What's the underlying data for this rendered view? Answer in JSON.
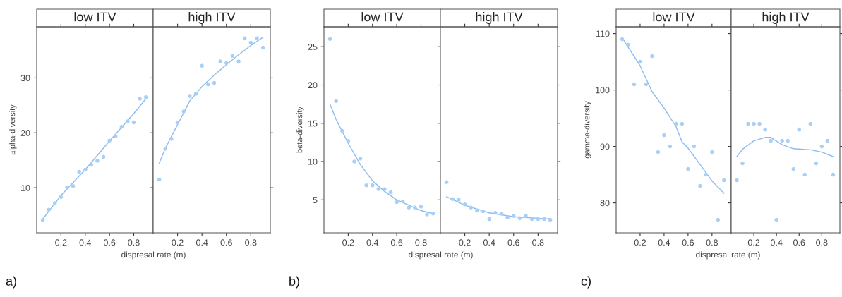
{
  "chart_data": [
    {
      "type": "scatter",
      "title": "low ITV",
      "xlabel": "dispresal rate (m)",
      "ylabel": "alpha-diversity",
      "annotations": [
        "a)"
      ],
      "grid": false,
      "xlim": [
        0.0,
        0.96
      ],
      "xticks": [
        0.2,
        0.4,
        0.6,
        0.8
      ],
      "ylim": [
        1.8,
        39.3
      ],
      "yticks": [
        10,
        20,
        30
      ],
      "x": [
        0.05,
        0.1,
        0.15,
        0.2,
        0.25,
        0.3,
        0.35,
        0.4,
        0.45,
        0.5,
        0.55,
        0.6,
        0.65,
        0.7,
        0.75,
        0.8,
        0.85,
        0.9
      ],
      "series": [
        {
          "marker": "circle",
          "color": "#a8cff5",
          "values": [
            4.1,
            6.0,
            7.2,
            8.3,
            10.0,
            10.3,
            12.9,
            13.3,
            14.2,
            14.9,
            15.6,
            18.6,
            19.4,
            21.1,
            22.1,
            21.9,
            26.2,
            26.5
          ]
        },
        {
          "type": "line",
          "color": "#8abcf0",
          "x": [
            0.05,
            0.2,
            0.4,
            0.6,
            0.8,
            0.9
          ],
          "values": [
            4.3,
            8.6,
            13.3,
            18.5,
            23.5,
            26.2
          ]
        }
      ]
    },
    {
      "type": "scatter",
      "title": "high ITV",
      "grid": false,
      "tick_labels": "x",
      "xlim": [
        0.0,
        0.96
      ],
      "xticks": [
        0.2,
        0.4,
        0.6,
        0.8
      ],
      "ylim": [
        1.8,
        39.3
      ],
      "yticks": [
        10,
        20,
        30
      ],
      "x": [
        0.05,
        0.1,
        0.15,
        0.2,
        0.25,
        0.3,
        0.35,
        0.4,
        0.45,
        0.5,
        0.55,
        0.6,
        0.65,
        0.7,
        0.75,
        0.8,
        0.85,
        0.9
      ],
      "series": [
        {
          "marker": "circle",
          "color": "#a8cff5",
          "values": [
            11.5,
            17.1,
            18.9,
            21.9,
            23.9,
            26.7,
            27.1,
            32.2,
            28.8,
            29.1,
            33.0,
            32.7,
            34.0,
            33.0,
            37.2,
            36.4,
            37.2,
            35.5
          ]
        },
        {
          "type": "line",
          "color": "#8abcf0",
          "x": [
            0.05,
            0.1,
            0.2,
            0.3,
            0.4,
            0.5,
            0.6,
            0.7,
            0.8,
            0.9
          ],
          "values": [
            14.5,
            17.2,
            21.5,
            25.8,
            28.4,
            30.5,
            32.4,
            34.2,
            35.9,
            37.4
          ]
        }
      ]
    },
    {
      "type": "scatter",
      "title": "low ITV",
      "xlabel": "dispresal rate (m)",
      "ylabel": "beta-diversity",
      "annotations": [
        "b)"
      ],
      "grid": false,
      "xlim": [
        0.0,
        0.96
      ],
      "xticks": [
        0.2,
        0.4,
        0.6,
        0.8
      ],
      "ylim": [
        0.7,
        27.6
      ],
      "yticks": [
        5,
        10,
        15,
        20,
        25
      ],
      "x": [
        0.05,
        0.1,
        0.15,
        0.2,
        0.25,
        0.3,
        0.35,
        0.4,
        0.45,
        0.5,
        0.55,
        0.6,
        0.65,
        0.7,
        0.75,
        0.8,
        0.85,
        0.9
      ],
      "series": [
        {
          "marker": "circle",
          "color": "#a8cff5",
          "values": [
            26.0,
            17.9,
            14.0,
            12.7,
            10.0,
            10.4,
            6.9,
            6.9,
            6.4,
            6.4,
            6.0,
            4.7,
            4.8,
            4.0,
            4.0,
            4.1,
            3.1,
            3.2
          ]
        },
        {
          "type": "line",
          "color": "#8abcf0",
          "x": [
            0.05,
            0.1,
            0.2,
            0.3,
            0.4,
            0.5,
            0.6,
            0.7,
            0.8,
            0.9
          ],
          "values": [
            17.5,
            15.5,
            12.4,
            9.6,
            7.5,
            6.1,
            5.0,
            4.3,
            3.6,
            3.2
          ]
        }
      ]
    },
    {
      "type": "scatter",
      "title": "high ITV",
      "grid": false,
      "tick_labels": "x",
      "xlim": [
        0.0,
        0.96
      ],
      "xticks": [
        0.2,
        0.4,
        0.6,
        0.8
      ],
      "ylim": [
        0.7,
        27.6
      ],
      "yticks": [
        5,
        10,
        15,
        20,
        25
      ],
      "x": [
        0.05,
        0.1,
        0.15,
        0.2,
        0.25,
        0.3,
        0.35,
        0.4,
        0.45,
        0.5,
        0.55,
        0.6,
        0.65,
        0.7,
        0.75,
        0.8,
        0.85,
        0.9
      ],
      "series": [
        {
          "marker": "circle",
          "color": "#a8cff5",
          "values": [
            7.3,
            5.1,
            5.0,
            4.4,
            4.0,
            3.6,
            3.5,
            2.5,
            3.3,
            3.2,
            2.7,
            2.9,
            2.6,
            2.9,
            2.5,
            2.5,
            2.5,
            2.4
          ]
        },
        {
          "type": "line",
          "color": "#8abcf0",
          "x": [
            0.05,
            0.2,
            0.4,
            0.6,
            0.8,
            0.9
          ],
          "values": [
            5.4,
            4.3,
            3.3,
            2.8,
            2.6,
            2.5
          ]
        }
      ]
    },
    {
      "type": "scatter",
      "title": "low ITV",
      "xlabel": "dispresal rate (m)",
      "ylabel": "gamma-diversity",
      "annotations": [
        "c)"
      ],
      "grid": false,
      "xlim": [
        0.0,
        0.96
      ],
      "xticks": [
        0.2,
        0.4,
        0.6,
        0.8
      ],
      "ylim": [
        74.7,
        111.2
      ],
      "yticks": [
        80,
        90,
        100,
        110
      ],
      "x": [
        0.05,
        0.1,
        0.15,
        0.2,
        0.25,
        0.3,
        0.35,
        0.4,
        0.45,
        0.5,
        0.55,
        0.6,
        0.65,
        0.7,
        0.75,
        0.8,
        0.85,
        0.9
      ],
      "series": [
        {
          "marker": "circle",
          "color": "#a8cff5",
          "values": [
            109,
            108,
            101,
            105,
            101,
            106,
            89,
            92,
            90,
            94,
            94,
            86,
            90,
            83,
            85,
            89,
            77,
            84
          ]
        },
        {
          "type": "line",
          "color": "#8abcf0",
          "x": [
            0.05,
            0.1,
            0.2,
            0.3,
            0.4,
            0.5,
            0.55,
            0.6,
            0.7,
            0.8,
            0.9
          ],
          "values": [
            109.3,
            107.6,
            104.3,
            99.7,
            96.8,
            93.5,
            90.8,
            89.7,
            86.8,
            83.9,
            81.7
          ]
        }
      ]
    },
    {
      "type": "scatter",
      "title": "high ITV",
      "grid": false,
      "tick_labels": "x",
      "xlim": [
        0.0,
        0.96
      ],
      "xticks": [
        0.2,
        0.4,
        0.6,
        0.8
      ],
      "ylim": [
        74.7,
        111.2
      ],
      "yticks": [
        80,
        90,
        100,
        110
      ],
      "x": [
        0.05,
        0.1,
        0.15,
        0.2,
        0.25,
        0.3,
        0.35,
        0.4,
        0.45,
        0.5,
        0.55,
        0.6,
        0.65,
        0.7,
        0.75,
        0.8,
        0.85,
        0.9
      ],
      "series": [
        {
          "marker": "circle",
          "color": "#a8cff5",
          "values": [
            84,
            87,
            94,
            94,
            94,
            93,
            91,
            77,
            91,
            91,
            86,
            93,
            85,
            94,
            87,
            90,
            91,
            85
          ]
        },
        {
          "type": "line",
          "color": "#8abcf0",
          "x": [
            0.05,
            0.1,
            0.2,
            0.3,
            0.35,
            0.45,
            0.55,
            0.7,
            0.8,
            0.9
          ],
          "values": [
            88.2,
            89.5,
            91.0,
            91.6,
            91.6,
            90.3,
            89.6,
            89.4,
            89.0,
            88.2
          ]
        }
      ]
    }
  ]
}
